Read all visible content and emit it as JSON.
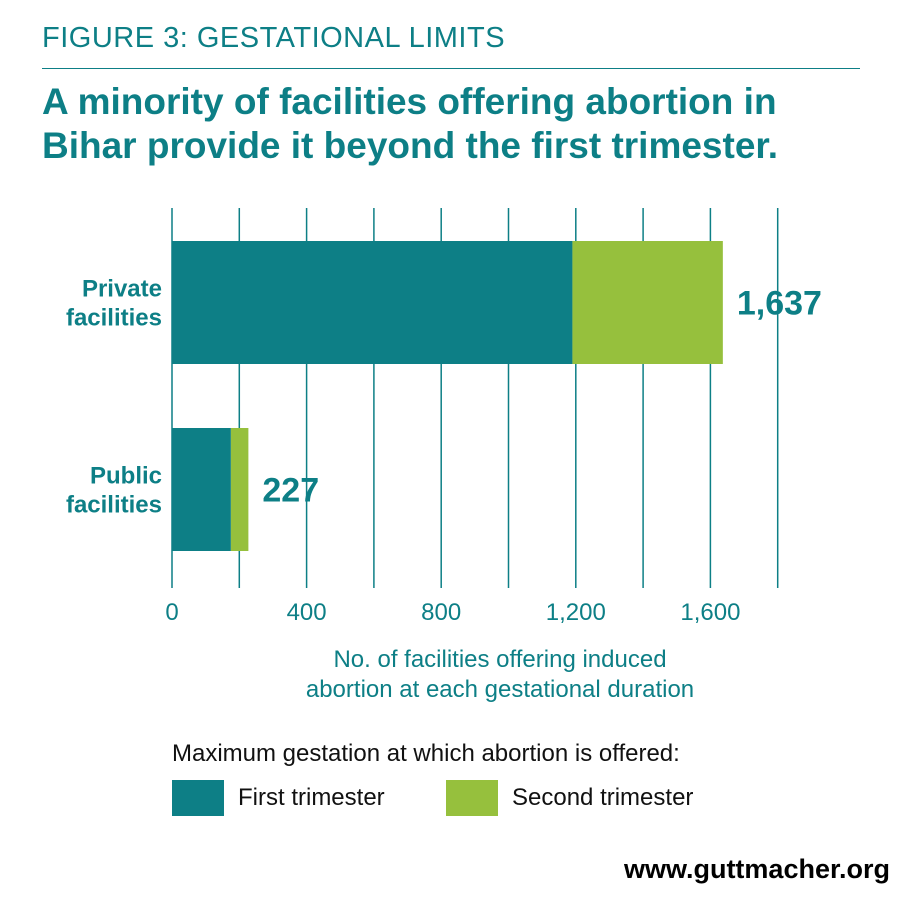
{
  "figure_label": "FIGURE 3: GESTATIONAL LIMITS",
  "title": "A minority of facilities offering abortion in Bihar provide it beyond the first trimester.",
  "footer": "www.guttmacher.org",
  "colors": {
    "teal": "#0d7f86",
    "green": "#96c03d",
    "grid": "#0d7f86"
  },
  "chart_data": {
    "type": "bar",
    "orientation": "horizontal",
    "stacked": true,
    "categories": [
      "Private facilities",
      "Public facilities"
    ],
    "category_lines": [
      [
        "Private",
        "facilities"
      ],
      [
        "Public",
        "facilities"
      ]
    ],
    "series": [
      {
        "name": "First trimester",
        "color": "#0d7f86",
        "values": [
          1190,
          175
        ]
      },
      {
        "name": "Second trimester",
        "color": "#96c03d",
        "values": [
          447,
          52
        ]
      }
    ],
    "totals": [
      1637,
      227
    ],
    "total_labels": [
      "1,637",
      "227"
    ],
    "xlim": [
      0,
      1800
    ],
    "ticks": [
      0,
      400,
      800,
      1200,
      1600
    ],
    "tick_labels": [
      "0",
      "400",
      "800",
      "1,200",
      "1,600"
    ],
    "grid_step": 200,
    "grid": true,
    "xlabel": "No. of facilities offering induced abortion at each gestational duration",
    "xlabel_lines": [
      "No. of facilities offering induced",
      "abortion at each gestational duration"
    ],
    "legend_title": "Maximum gestation at which abortion is offered:",
    "legend_position": "bottom"
  }
}
